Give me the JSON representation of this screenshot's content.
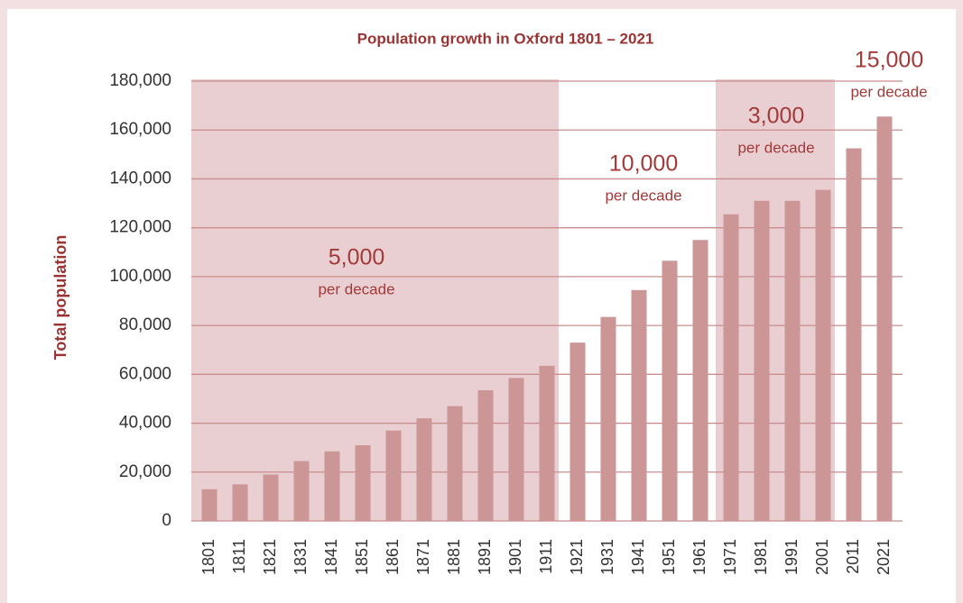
{
  "chart_data": {
    "type": "bar",
    "title": "Population growth in Oxford 1801 – 2021",
    "y_label": "Total population",
    "categories": [
      "1801",
      "1811",
      "1821",
      "1831",
      "1841",
      "1851",
      "1861",
      "1871",
      "1881",
      "1891",
      "1901",
      "1911",
      "1921",
      "1931",
      "1941",
      "1951",
      "1961",
      "1971",
      "1981",
      "1991",
      "2001",
      "2011",
      "2021"
    ],
    "values": [
      13000,
      15000,
      19000,
      24500,
      28500,
      31000,
      37000,
      42000,
      47000,
      53500,
      58500,
      63500,
      73000,
      83500,
      94500,
      106500,
      115000,
      125500,
      131000,
      131000,
      135500,
      152500,
      165500
    ],
    "color": "#cc9696",
    "ylim": [
      0,
      180000
    ],
    "yticks": [
      0,
      {
        "value": 20000,
        "label": "20,000"
      },
      {
        "value": 40000,
        "label": "40,000"
      },
      {
        "value": 60000,
        "label": "60,000"
      },
      {
        "value": 80000,
        "label": "80,000"
      },
      {
        "value": 100000,
        "label": "100,000"
      },
      {
        "value": 120000,
        "label": "120,000"
      },
      {
        "value": 140000,
        "label": "140,000"
      },
      {
        "value": 160000,
        "label": "160,000"
      },
      {
        "value": 180000,
        "label": "180,000"
      }
    ],
    "grid": true,
    "annotations": [
      {
        "text": "5,000",
        "subtext": "per decade",
        "span": [
          "1801",
          "1911"
        ]
      },
      {
        "text": "10,000",
        "subtext": "per decade"
      },
      {
        "text": "3,000",
        "subtext": "per decade",
        "span": [
          "1971",
          "2001"
        ]
      },
      {
        "text": "15,000",
        "subtext": "per decade"
      }
    ]
  }
}
